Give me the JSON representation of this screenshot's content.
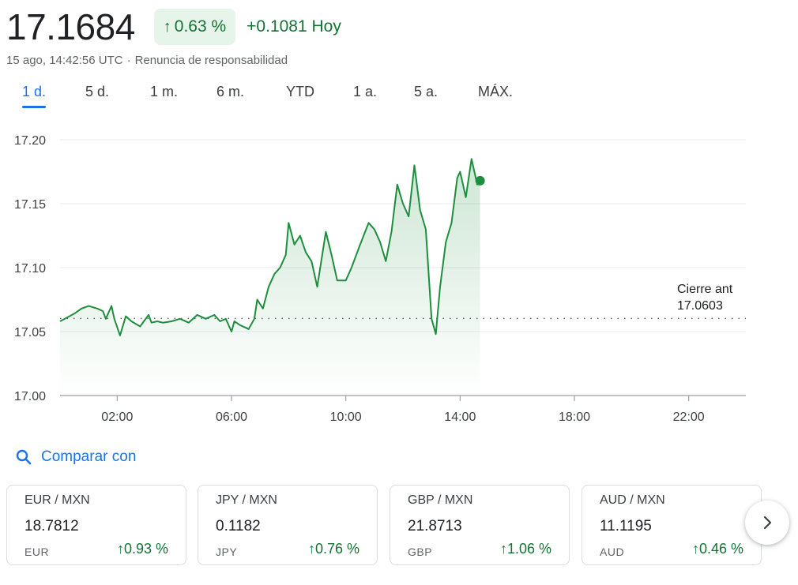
{
  "header": {
    "price": "17.1684",
    "pct_change": "0.63 %",
    "abs_change": "+0.1081 Hoy",
    "timestamp": "15 ago, 14:42:56 UTC",
    "disclaimer": "Renuncia de responsabilidad"
  },
  "tabs": [
    "1 d.",
    "5 d.",
    "1 m.",
    "6 m.",
    "YTD",
    "1 a.",
    "5 a.",
    "MÁX."
  ],
  "active_tab": "1 d.",
  "compare_label": "Comparar con",
  "cards": [
    {
      "pair": "EUR / MXN",
      "value": "18.7812",
      "currency": "EUR",
      "change": "0.93 %"
    },
    {
      "pair": "JPY / MXN",
      "value": "0.1182",
      "currency": "JPY",
      "change": "0.76 %"
    },
    {
      "pair": "GBP / MXN",
      "value": "21.8713",
      "currency": "GBP",
      "change": "1.06 %"
    },
    {
      "pair": "AUD / MXN",
      "value": "11.1195",
      "currency": "AUD",
      "change": "0.46 %"
    }
  ],
  "colors": {
    "line": "#1e8e3e",
    "positive": "#137333",
    "accent": "#1a73e8"
  },
  "icons": {
    "change_arrow": "arrow-up-icon",
    "compare": "search-icon",
    "next": "chevron-right-icon"
  },
  "chart_data": {
    "type": "area",
    "x_unit": "hours",
    "xlim": [
      0,
      24
    ],
    "ylim": [
      17.0,
      17.2
    ],
    "yticks": [
      "17.20",
      "17.15",
      "17.10",
      "17.05",
      "17.00"
    ],
    "ytick_values": [
      17.2,
      17.15,
      17.1,
      17.05,
      17.0
    ],
    "xticks": [
      "02:00",
      "06:00",
      "10:00",
      "14:00",
      "18:00",
      "22:00"
    ],
    "xtick_values": [
      2,
      6,
      10,
      14,
      18,
      22
    ],
    "grid": true,
    "previous_close": {
      "label": "Cierre ant",
      "value": 17.0603,
      "value_label": "17.0603"
    },
    "series": [
      {
        "x": [
          0,
          0.5,
          0.75,
          1.0,
          1.3,
          1.5,
          1.6,
          1.8,
          1.9,
          2.1,
          2.3,
          2.5,
          2.8,
          3.1,
          3.2,
          3.4,
          3.6,
          3.9,
          4.2,
          4.5,
          4.8,
          5.1,
          5.4,
          5.6,
          5.8,
          6.0,
          6.1,
          6.3,
          6.6,
          6.8,
          6.9,
          7.1,
          7.3,
          7.5,
          7.7,
          7.9,
          8.0,
          8.2,
          8.4,
          8.6,
          8.8,
          9.0,
          9.3,
          9.5,
          9.7,
          10.0,
          10.2,
          10.5,
          10.8,
          11.0,
          11.2,
          11.4,
          11.6,
          11.8,
          12.0,
          12.2,
          12.4,
          12.6,
          12.8,
          13.0,
          13.15,
          13.3,
          13.5,
          13.7,
          13.9,
          14.0,
          14.2,
          14.4,
          14.6,
          14.7
        ],
        "y": [
          17.058,
          17.064,
          17.068,
          17.07,
          17.068,
          17.066,
          17.06,
          17.07,
          17.06,
          17.047,
          17.062,
          17.058,
          17.054,
          17.063,
          17.057,
          17.058,
          17.057,
          17.058,
          17.06,
          17.057,
          17.063,
          17.06,
          17.063,
          17.058,
          17.06,
          17.05,
          17.058,
          17.055,
          17.052,
          17.06,
          17.075,
          17.068,
          17.085,
          17.095,
          17.1,
          17.11,
          17.135,
          17.118,
          17.125,
          17.112,
          17.105,
          17.085,
          17.128,
          17.11,
          17.09,
          17.09,
          17.1,
          17.118,
          17.135,
          17.13,
          17.12,
          17.105,
          17.128,
          17.165,
          17.15,
          17.14,
          17.18,
          17.145,
          17.13,
          17.06,
          17.048,
          17.085,
          17.12,
          17.135,
          17.17,
          17.175,
          17.155,
          17.185,
          17.165,
          17.168
        ]
      }
    ]
  }
}
